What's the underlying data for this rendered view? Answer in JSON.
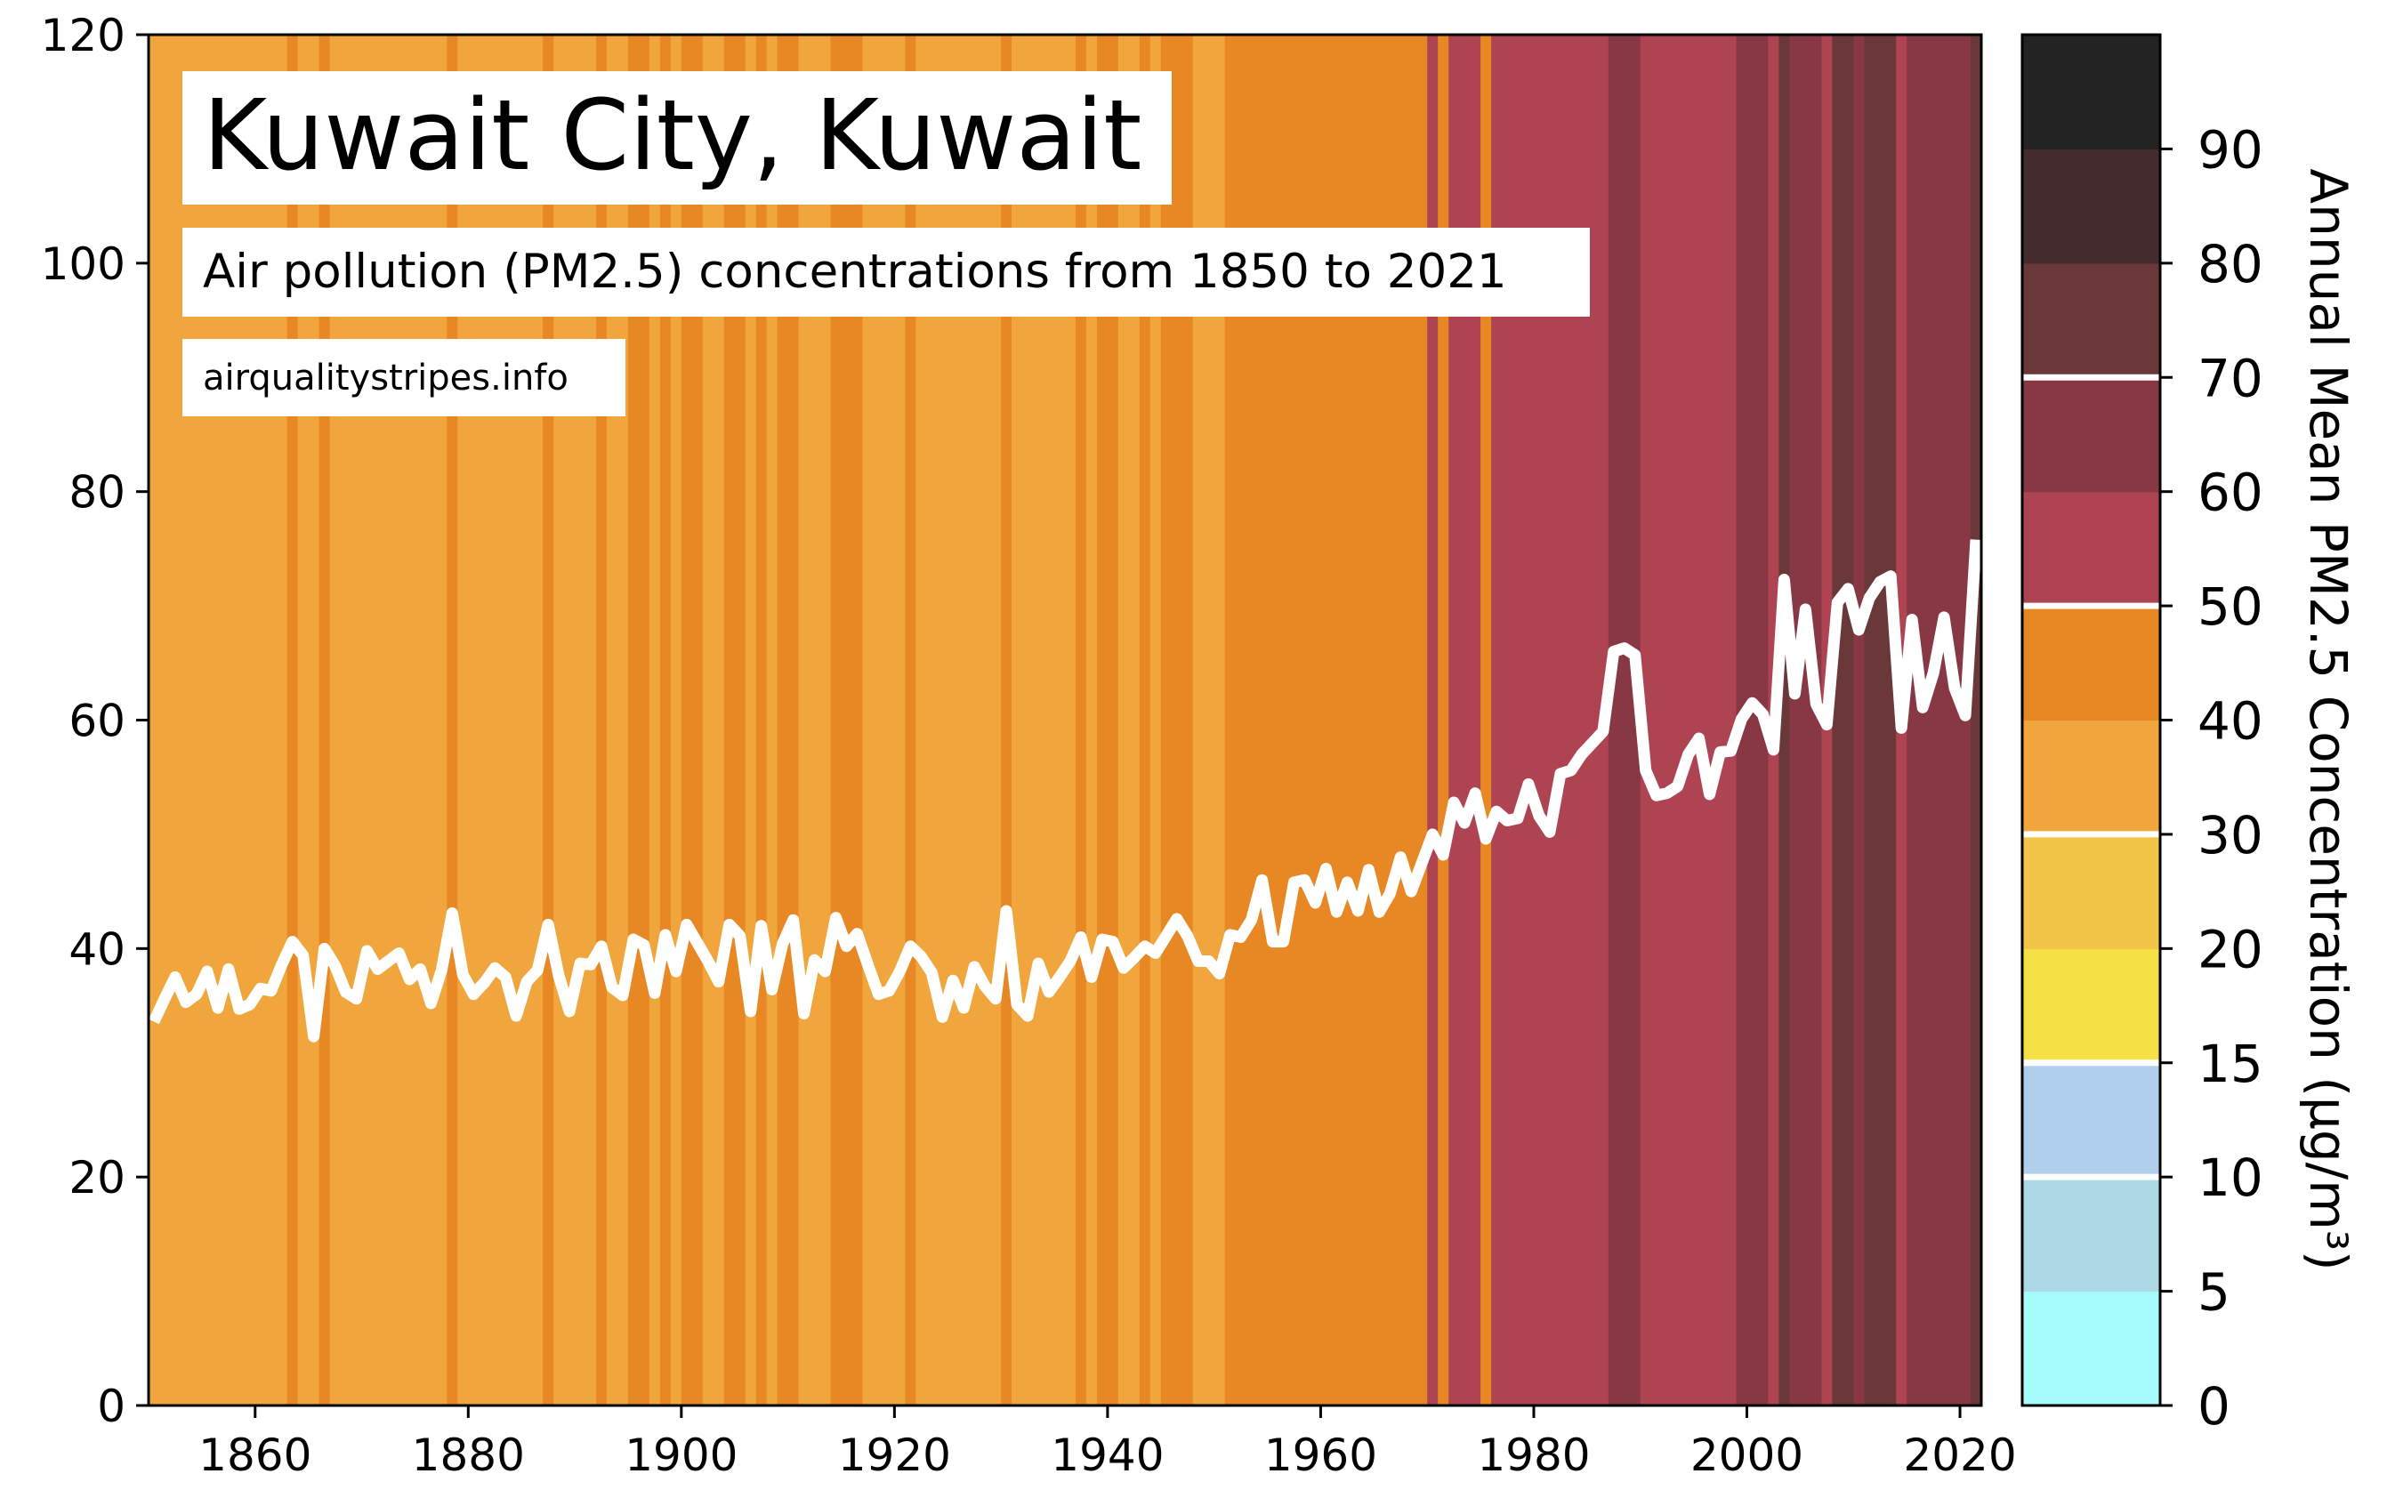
{
  "title": "Kuwait City, Kuwait",
  "subtitle": "Air pollution (PM2.5) concentrations from 1850 to 2021",
  "source": "airqualitystripes.info",
  "colorbar": {
    "label": "Annual Mean PM2.5 Concentration (µg/m³)",
    "tick_labels": [
      "0",
      "5",
      "10",
      "15",
      "20",
      "30",
      "40",
      "50",
      "60",
      "70",
      "80",
      "90"
    ],
    "bands": [
      {
        "from": 0,
        "to": 5,
        "color": "#a6fcfd"
      },
      {
        "from": 5,
        "to": 10,
        "color": "#add8e6"
      },
      {
        "from": 10,
        "to": 15,
        "color": "#b0cfeb"
      },
      {
        "from": 15,
        "to": 20,
        "color": "#f7e045"
      },
      {
        "from": 20,
        "to": 30,
        "color": "#f2c447"
      },
      {
        "from": 30,
        "to": 40,
        "color": "#f0a63c"
      },
      {
        "from": 40,
        "to": 50,
        "color": "#e88824"
      },
      {
        "from": 50,
        "to": 60,
        "color": "#ae4452"
      },
      {
        "from": 60,
        "to": 70,
        "color": "#873844"
      },
      {
        "from": 70,
        "to": 80,
        "color": "#6a3839"
      },
      {
        "from": 80,
        "to": 90,
        "color": "#442b2e"
      },
      {
        "from": 90,
        "to": 100,
        "color": "#232323"
      }
    ],
    "separators_at": [
      10,
      15,
      30,
      50,
      70
    ]
  },
  "chart_data": {
    "type": "line",
    "title": "Kuwait City, Kuwait",
    "subtitle": "Air pollution (PM2.5) concentrations from 1850 to 2021",
    "xlabel": "",
    "ylabel": "",
    "xlim": [
      1850,
      2022
    ],
    "ylim": [
      0,
      120
    ],
    "x_ticks": [
      1860,
      1880,
      1900,
      1920,
      1940,
      1960,
      1980,
      2000,
      2020
    ],
    "y_ticks": [
      0,
      20,
      40,
      60,
      80,
      100,
      120
    ],
    "line_color": "#ffffff",
    "background": "annual color stripes keyed to the PM2.5 colorbar",
    "start_year": 1850,
    "values": [
      33.6,
      35.6,
      37.5,
      35.3,
      36.0,
      38.0,
      34.8,
      38.2,
      34.7,
      35.1,
      36.5,
      36.3,
      38.6,
      40.6,
      39.4,
      32.3,
      40.0,
      38.5,
      36.2,
      35.6,
      39.8,
      38.2,
      38.9,
      39.6,
      37.3,
      38.2,
      35.2,
      38.1,
      43.1,
      37.7,
      36.0,
      37.0,
      38.3,
      37.5,
      34.1,
      37.1,
      38.1,
      42.1,
      37.6,
      34.5,
      38.7,
      38.6,
      40.2,
      36.6,
      35.9,
      40.8,
      40.3,
      36.1,
      41.2,
      38.0,
      42.1,
      40.5,
      38.9,
      37.1,
      42.1,
      41.1,
      34.5,
      42.0,
      36.4,
      40.4,
      42.5,
      34.3,
      39.0,
      38.0,
      42.7,
      40.2,
      41.3,
      38.6,
      36.0,
      36.3,
      38.0,
      40.2,
      39.3,
      37.9,
      34.0,
      37.2,
      34.8,
      38.4,
      36.7,
      35.6,
      43.3,
      35.1,
      34.1,
      38.7,
      36.2,
      37.5,
      38.9,
      41.0,
      37.5,
      40.8,
      40.6,
      38.3,
      39.2,
      40.2,
      39.6,
      41.1,
      42.6,
      41.1,
      38.9,
      38.9,
      37.8,
      41.2,
      41.0,
      42.5,
      46.0,
      40.6,
      40.6,
      45.8,
      46.0,
      44.0,
      47.0,
      43.2,
      45.8,
      43.3,
      46.9,
      43.2,
      44.8,
      48.0,
      45.0,
      47.5,
      50.0,
      48.2,
      52.8,
      51.0,
      53.6,
      49.6,
      52.0,
      51.2,
      51.4,
      54.4,
      51.6,
      50.2,
      55.3,
      55.6,
      57.0,
      58.0,
      59.0,
      66.0,
      66.3,
      65.7,
      55.6,
      53.4,
      53.6,
      54.2,
      57.0,
      58.4,
      53.5,
      57.2,
      57.3,
      60.1,
      61.5,
      60.5,
      57.4,
      72.3,
      62.3,
      69.7,
      61.4,
      59.6,
      70.3,
      71.5,
      67.9,
      70.7,
      72.1,
      72.6,
      59.3,
      68.8,
      61.1,
      64.1,
      69.0,
      62.8,
      60.4,
      75.8
    ]
  }
}
